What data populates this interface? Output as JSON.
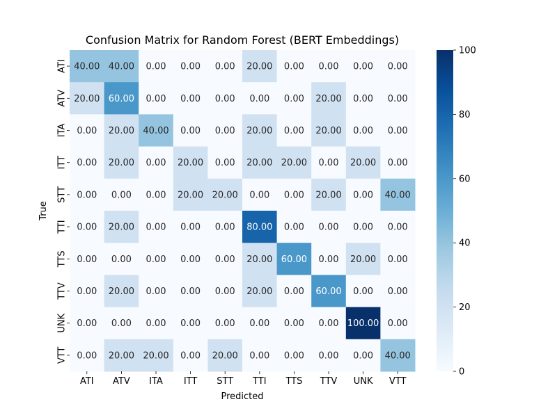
{
  "chart_data": {
    "type": "heatmap",
    "title": "Confusion Matrix for Random Forest (BERT Embeddings)",
    "xlabel": "Predicted",
    "ylabel": "True",
    "x_categories": [
      "ATI",
      "ATV",
      "ITA",
      "ITT",
      "STT",
      "TTI",
      "TTS",
      "TTV",
      "UNK",
      "VTT"
    ],
    "y_categories": [
      "ATI",
      "ATV",
      "ITA",
      "ITT",
      "STT",
      "TTI",
      "TTS",
      "TTV",
      "UNK",
      "VTT"
    ],
    "values": [
      [
        40,
        40,
        0,
        0,
        0,
        20,
        0,
        0,
        0,
        0
      ],
      [
        20,
        60,
        0,
        0,
        0,
        0,
        0,
        20,
        0,
        0
      ],
      [
        0,
        20,
        40,
        0,
        0,
        20,
        0,
        20,
        0,
        0
      ],
      [
        0,
        20,
        0,
        20,
        0,
        20,
        20,
        0,
        20,
        0
      ],
      [
        0,
        0,
        0,
        20,
        20,
        0,
        0,
        20,
        0,
        40
      ],
      [
        0,
        20,
        0,
        0,
        0,
        80,
        0,
        0,
        0,
        0
      ],
      [
        0,
        0,
        0,
        0,
        0,
        20,
        60,
        0,
        20,
        0
      ],
      [
        0,
        20,
        0,
        0,
        0,
        20,
        0,
        60,
        0,
        0
      ],
      [
        0,
        0,
        0,
        0,
        0,
        0,
        0,
        0,
        100,
        0
      ],
      [
        0,
        20,
        20,
        0,
        20,
        0,
        0,
        0,
        0,
        40
      ]
    ],
    "value_format_decimals": 2,
    "colorbar": {
      "min": 0,
      "max": 100,
      "ticks": [
        0,
        20,
        40,
        60,
        80,
        100
      ]
    },
    "colormap": "Blues",
    "grid": false,
    "legend": "colorbar-right"
  }
}
